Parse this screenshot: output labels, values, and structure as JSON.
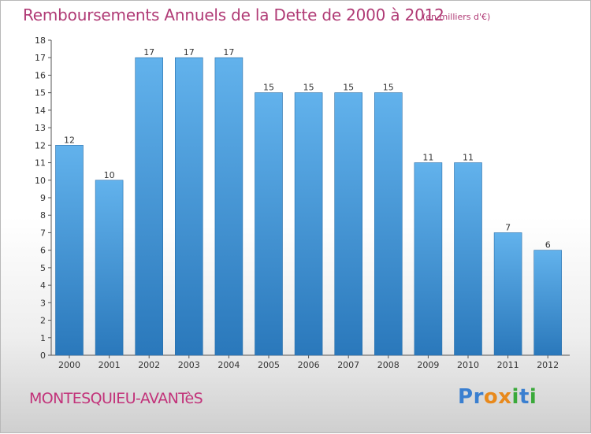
{
  "header": {
    "title": "Remboursements Annuels de la Dette de 2000 à 2012",
    "subtitle": "(en milliers d'€)"
  },
  "footer": {
    "commune": "MONTESQUIEU-AVANTèS",
    "logo_text": "Proxiti",
    "logo_letters": [
      {
        "char": "P",
        "color": "#3a7fd0"
      },
      {
        "char": "r",
        "color": "#3a7fd0"
      },
      {
        "char": "o",
        "color": "#e8891c"
      },
      {
        "char": "x",
        "color": "#e8891c"
      },
      {
        "char": "i",
        "color": "#3aa93a"
      },
      {
        "char": "t",
        "color": "#3a7fd0"
      },
      {
        "char": "i",
        "color": "#3aa93a"
      }
    ]
  },
  "colors": {
    "bar_top": "#62b2ec",
    "bar_bottom": "#2a78bb",
    "title": "#b03a75"
  },
  "chart_data": {
    "type": "bar",
    "categories": [
      "2000",
      "2001",
      "2002",
      "2003",
      "2004",
      "2005",
      "2006",
      "2007",
      "2008",
      "2009",
      "2010",
      "2011",
      "2012"
    ],
    "values": [
      12,
      10,
      17,
      17,
      17,
      15,
      15,
      15,
      15,
      11,
      11,
      7,
      6
    ],
    "title": "Remboursements Annuels de la Dette de 2000 à 2012",
    "xlabel": "",
    "ylabel": "",
    "ylim": [
      0,
      18
    ],
    "yticks": [
      0,
      1,
      2,
      3,
      4,
      5,
      6,
      7,
      8,
      9,
      10,
      11,
      12,
      13,
      14,
      15,
      16,
      17,
      18
    ],
    "grid": false,
    "legend": "none"
  }
}
